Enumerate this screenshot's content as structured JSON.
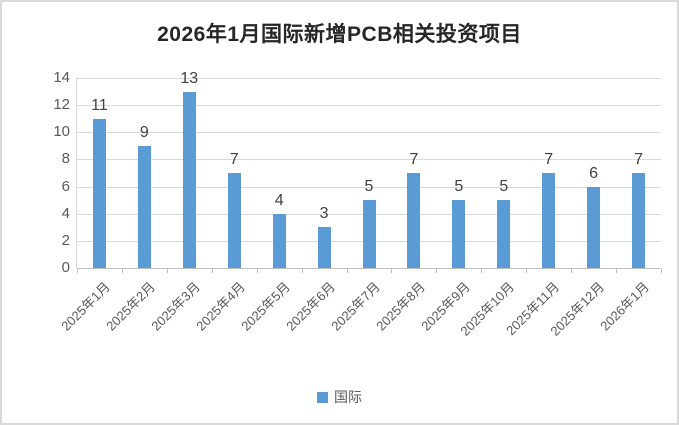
{
  "chart_data": {
    "type": "bar",
    "title": "2026年1月国际新增PCB相关投资项目",
    "categories": [
      "2025年1月",
      "2025年2月",
      "2025年3月",
      "2025年4月",
      "2025年5月",
      "2025年6月",
      "2025年7月",
      "2025年8月",
      "2025年9月",
      "2025年10月",
      "2025年11月",
      "2025年12月",
      "2026年1月"
    ],
    "series": [
      {
        "name": "国际",
        "values": [
          11,
          9,
          13,
          7,
          4,
          3,
          5,
          7,
          5,
          5,
          7,
          6,
          7
        ]
      }
    ],
    "xlabel": "",
    "ylabel": "",
    "ylim": [
      0,
      14
    ],
    "ytick_step": 2,
    "yticks": [
      0,
      2,
      4,
      6,
      8,
      10,
      12,
      14
    ],
    "grid": true,
    "data_labels": true,
    "legend_position": "bottom",
    "colors": {
      "bar": "#5B9BD5",
      "gridline": "#D9D9D9",
      "axis": "#BFBFBF",
      "axis_label": "#595959",
      "data_label": "#404040",
      "title": "#262626",
      "border": "#D9D9D9",
      "background": "#FFFFFF"
    }
  }
}
